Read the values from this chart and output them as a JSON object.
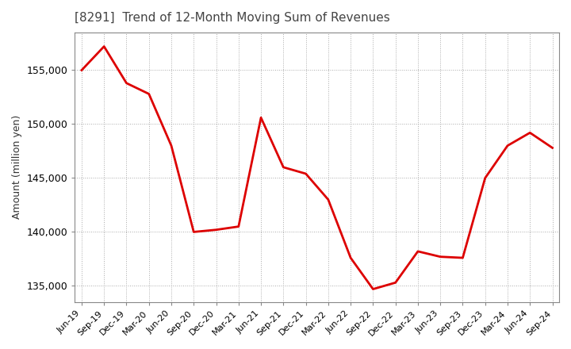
{
  "title": "[8291]  Trend of 12-Month Moving Sum of Revenues",
  "ylabel": "Amount (million yen)",
  "line_color": "#dd0000",
  "background_color": "#ffffff",
  "grid_color": "#aaaaaa",
  "x_labels": [
    "Jun-19",
    "Sep-19",
    "Dec-19",
    "Mar-20",
    "Jun-20",
    "Sep-20",
    "Dec-20",
    "Mar-21",
    "Jun-21",
    "Sep-21",
    "Dec-21",
    "Mar-22",
    "Jun-22",
    "Sep-22",
    "Dec-22",
    "Mar-23",
    "Jun-23",
    "Sep-23",
    "Dec-23",
    "Mar-24",
    "Jun-24",
    "Sep-24"
  ],
  "values": [
    155000,
    157200,
    153800,
    152800,
    148000,
    140000,
    140200,
    140500,
    150600,
    146000,
    145400,
    143000,
    137600,
    134700,
    135300,
    138200,
    137700,
    137600,
    145000,
    148000,
    149200,
    147800
  ],
  "ylim_min": 133500,
  "ylim_max": 158500,
  "yticks": [
    135000,
    140000,
    145000,
    150000,
    155000
  ]
}
